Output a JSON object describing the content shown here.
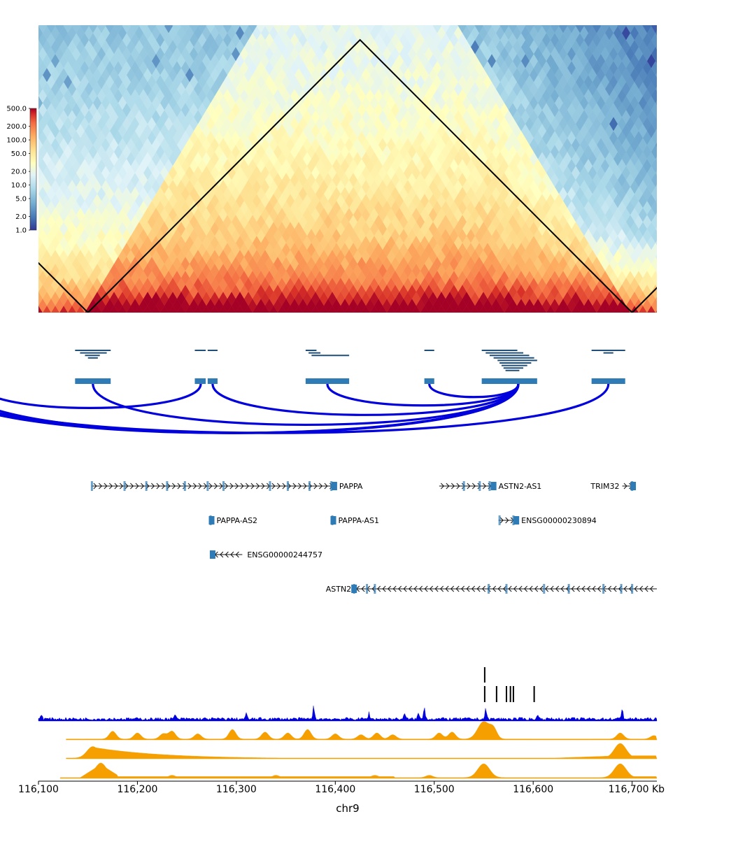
{
  "chart_data": {
    "type": "heatmap",
    "chromosome": "chr9",
    "xlabel": "chr9",
    "xrange_kb": [
      116100,
      116725
    ],
    "x_ticks": [
      {
        "value": 116100,
        "label": "116,100"
      },
      {
        "value": 116200,
        "label": "116,200"
      },
      {
        "value": 116300,
        "label": "116,300"
      },
      {
        "value": 116400,
        "label": "116,400"
      },
      {
        "value": 116500,
        "label": "116,500"
      },
      {
        "value": 116600,
        "label": "116,600"
      },
      {
        "value": 116700,
        "label": "116,700 Kb"
      }
    ],
    "hic": {
      "colormap": "RdYlBu_r",
      "scale": "log",
      "vmin": 1.0,
      "vmax": 500.0,
      "colorbar_ticks": [
        "500.0",
        "200.0",
        "100.0",
        "50.0",
        "20.0",
        "10.0",
        "5.0",
        "2.0",
        "1.0"
      ],
      "tad_boundaries_kb": [
        116150,
        116700
      ],
      "domains": [
        {
          "start_kb": 116150,
          "end_kb": 116700
        }
      ]
    },
    "peak_intervals": [
      {
        "start": 116137,
        "end": 116173,
        "rows": [
          [
            116137,
            116173
          ],
          [
            116142,
            116169
          ],
          [
            116147,
            116162
          ],
          [
            116150,
            116160
          ]
        ]
      },
      {
        "start": 116258,
        "end": 116269,
        "rows": [
          [
            116258,
            116269
          ]
        ]
      },
      {
        "start": 116271,
        "end": 116281,
        "rows": [
          [
            116271,
            116281
          ]
        ]
      },
      {
        "start": 116370,
        "end": 116414,
        "rows": [
          [
            116370,
            116381
          ],
          [
            116373,
            116385
          ],
          [
            116376,
            116414
          ]
        ]
      },
      {
        "start": 116490,
        "end": 116500,
        "rows": [
          [
            116490,
            116500
          ]
        ]
      },
      {
        "start": 116548,
        "end": 116604,
        "rows": [
          [
            116548,
            116584
          ],
          [
            116552,
            116590
          ],
          [
            116556,
            116596
          ],
          [
            116560,
            116601
          ],
          [
            116564,
            116604
          ],
          [
            116566,
            116598
          ],
          [
            116568,
            116594
          ],
          [
            116570,
            116590
          ],
          [
            116572,
            116586
          ]
        ]
      },
      {
        "start": 116659,
        "end": 116693,
        "rows": [
          [
            116659,
            116693
          ],
          [
            116671,
            116681
          ]
        ]
      }
    ],
    "loops": [
      {
        "from": 116155,
        "to": 116585
      },
      {
        "from": 116264,
        "to": 116040
      },
      {
        "from": 116276,
        "to": 116585
      },
      {
        "from": 116392,
        "to": 116585
      },
      {
        "from": 116495,
        "to": 116585
      },
      {
        "from": 116585,
        "to": 116020
      },
      {
        "from": 116585,
        "to": 116010
      },
      {
        "from": 116585,
        "to": 116000
      },
      {
        "from": 116676,
        "to": 116000
      }
    ],
    "genes": [
      {
        "name": "PAPPA",
        "start": 116154,
        "end": 116399,
        "strand": "+",
        "row": 0,
        "label_side": "right",
        "exons": [
          116154,
          116187,
          116209,
          116230,
          116248,
          116271,
          116287,
          116334,
          116352,
          116374,
          116396
        ]
      },
      {
        "name": "ASTN2-AS1",
        "start": 116505,
        "end": 116560,
        "strand": "+",
        "row": 0,
        "label_side": "right",
        "exons": [
          116530,
          116546,
          116556
        ]
      },
      {
        "name": "TRIM32",
        "start": 116690,
        "end": 116701,
        "strand": "+",
        "row": 0,
        "label_side": "left",
        "exons": [
          116700
        ]
      },
      {
        "name": "PAPPA-AS2",
        "start": 116273,
        "end": 116275,
        "strand": "+",
        "row": 1,
        "label_side": "right",
        "exons": [
          116274
        ]
      },
      {
        "name": "PAPPA-AS1",
        "start": 116396,
        "end": 116398,
        "strand": "+",
        "row": 1,
        "label_side": "right",
        "exons": [
          116397
        ]
      },
      {
        "name": "ENSG00000230894",
        "start": 116565,
        "end": 116583,
        "strand": "+",
        "row": 1,
        "label_side": "right",
        "exons": [
          116566,
          116580
        ]
      },
      {
        "name": "ENSG00000244757",
        "start": 116276,
        "end": 116306,
        "strand": "-",
        "row": 2,
        "label_side": "right",
        "exons": []
      },
      {
        "name": "ASTN2",
        "start": 116419,
        "end": 116725,
        "strand": "-",
        "row": 3,
        "label_side": "left",
        "exons": [
          116419,
          116432,
          116440,
          116555,
          116573,
          116611,
          116636,
          116671,
          116689,
          116700
        ]
      }
    ],
    "motif_marks": {
      "row1": [
        116551
      ],
      "row2": [
        116551,
        116563,
        116573,
        116577,
        116580,
        116601
      ]
    },
    "signal_tracks": [
      {
        "color": "#0000dd",
        "peaks": [
          {
            "x": 116103,
            "h": 0.3
          },
          {
            "x": 116238,
            "h": 0.25
          },
          {
            "x": 116310,
            "h": 0.3
          },
          {
            "x": 116378,
            "h": 0.7
          },
          {
            "x": 116434,
            "h": 0.35
          },
          {
            "x": 116470,
            "h": 0.3
          },
          {
            "x": 116484,
            "h": 0.35
          },
          {
            "x": 116490,
            "h": 0.75
          },
          {
            "x": 116552,
            "h": 0.6
          },
          {
            "x": 116605,
            "h": 0.3
          },
          {
            "x": 116690,
            "h": 0.65
          }
        ]
      },
      {
        "color": "#f5a000",
        "peaks": [
          {
            "x": 116115,
            "h": 0.15
          },
          {
            "x": 116175,
            "h": 0.45
          },
          {
            "x": 116200,
            "h": 0.35
          },
          {
            "x": 116226,
            "h": 0.3
          },
          {
            "x": 116235,
            "h": 0.45
          },
          {
            "x": 116261,
            "h": 0.3
          },
          {
            "x": 116296,
            "h": 0.55
          },
          {
            "x": 116329,
            "h": 0.4
          },
          {
            "x": 116352,
            "h": 0.35
          },
          {
            "x": 116372,
            "h": 0.55
          },
          {
            "x": 116400,
            "h": 0.3
          },
          {
            "x": 116426,
            "h": 0.25
          },
          {
            "x": 116442,
            "h": 0.35
          },
          {
            "x": 116458,
            "h": 0.25
          },
          {
            "x": 116505,
            "h": 0.35
          },
          {
            "x": 116518,
            "h": 0.4
          },
          {
            "x": 116550,
            "h": 1.0
          },
          {
            "x": 116560,
            "h": 0.5
          },
          {
            "x": 116688,
            "h": 0.35
          },
          {
            "x": 116722,
            "h": 0.2
          }
        ]
      },
      {
        "color": "#f5a000",
        "peaks": [
          {
            "x": 116155,
            "h": 0.75
          },
          {
            "x": 116688,
            "h": 0.95
          }
        ]
      },
      {
        "color": "#f5a000",
        "peaks": [
          {
            "x": 116163,
            "h": 0.95
          },
          {
            "x": 116235,
            "h": 0.15
          },
          {
            "x": 116340,
            "h": 0.15
          },
          {
            "x": 116440,
            "h": 0.15
          },
          {
            "x": 116495,
            "h": 0.15
          },
          {
            "x": 116550,
            "h": 0.9
          },
          {
            "x": 116688,
            "h": 0.9
          }
        ]
      }
    ]
  }
}
